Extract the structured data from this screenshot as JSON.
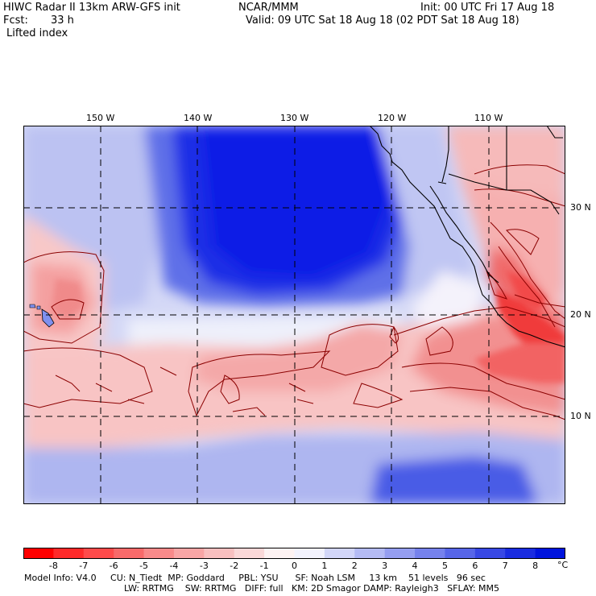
{
  "header": {
    "title": "HIWC Radar II 13km ARW-GFS init",
    "org": "NCAR/MMM",
    "init": "Init: 00 UTC Fri 17 Aug 18",
    "fcst_label": "Fcst:",
    "fcst_value": "33 h",
    "valid": "Valid: 09 UTC Sat 18 Aug 18 (02 PDT Sat 18 Aug 18)",
    "field": "Lifted index"
  },
  "map": {
    "lon_labels": [
      "150 W",
      "140 W",
      "130 W",
      "120 W",
      "110 W"
    ],
    "lat_labels": [
      "30 N",
      "20 N",
      "10 N"
    ],
    "colors": {
      "deep_blue": "#0a1ee6",
      "mid_blue": "#5a6ee8",
      "light_blue": "#c8cdf5",
      "white": "#ffffff",
      "light_red": "#f8c8c8",
      "mid_red": "#f07878",
      "deep_red": "#f02828",
      "contour": "#8b0000",
      "coast": "#000000"
    }
  },
  "colorbar": {
    "labels": [
      "-8",
      "-7",
      "-6",
      "-5",
      "-4",
      "-3",
      "-2",
      "-1",
      "0",
      "1",
      "2",
      "3",
      "4",
      "5",
      "6",
      "7",
      "8"
    ],
    "unit": "°C",
    "colors": [
      "#ff0000",
      "#ff2a2a",
      "#ff4b4b",
      "#f86a6a",
      "#f88a8a",
      "#f8a6a6",
      "#f8c0c0",
      "#fad8d8",
      "#fdf2f2",
      "#f2f2fd",
      "#d2d6f8",
      "#b4bbf4",
      "#959ef0",
      "#7682ec",
      "#5766e8",
      "#3848e4",
      "#1a2ce0",
      "#0014dd"
    ]
  },
  "info": {
    "line1": "Model Info: V4.0     CU: N_Tiedt  MP: Goddard     PBL: YSU      SF: Noah LSM     13 km    51 levels   96 sec",
    "line2": "LW: RRTMG    SW: RRTMG   DIFF: full   KM: 2D Smagor DAMP: Rayleigh3   SFLAY: MM5"
  }
}
